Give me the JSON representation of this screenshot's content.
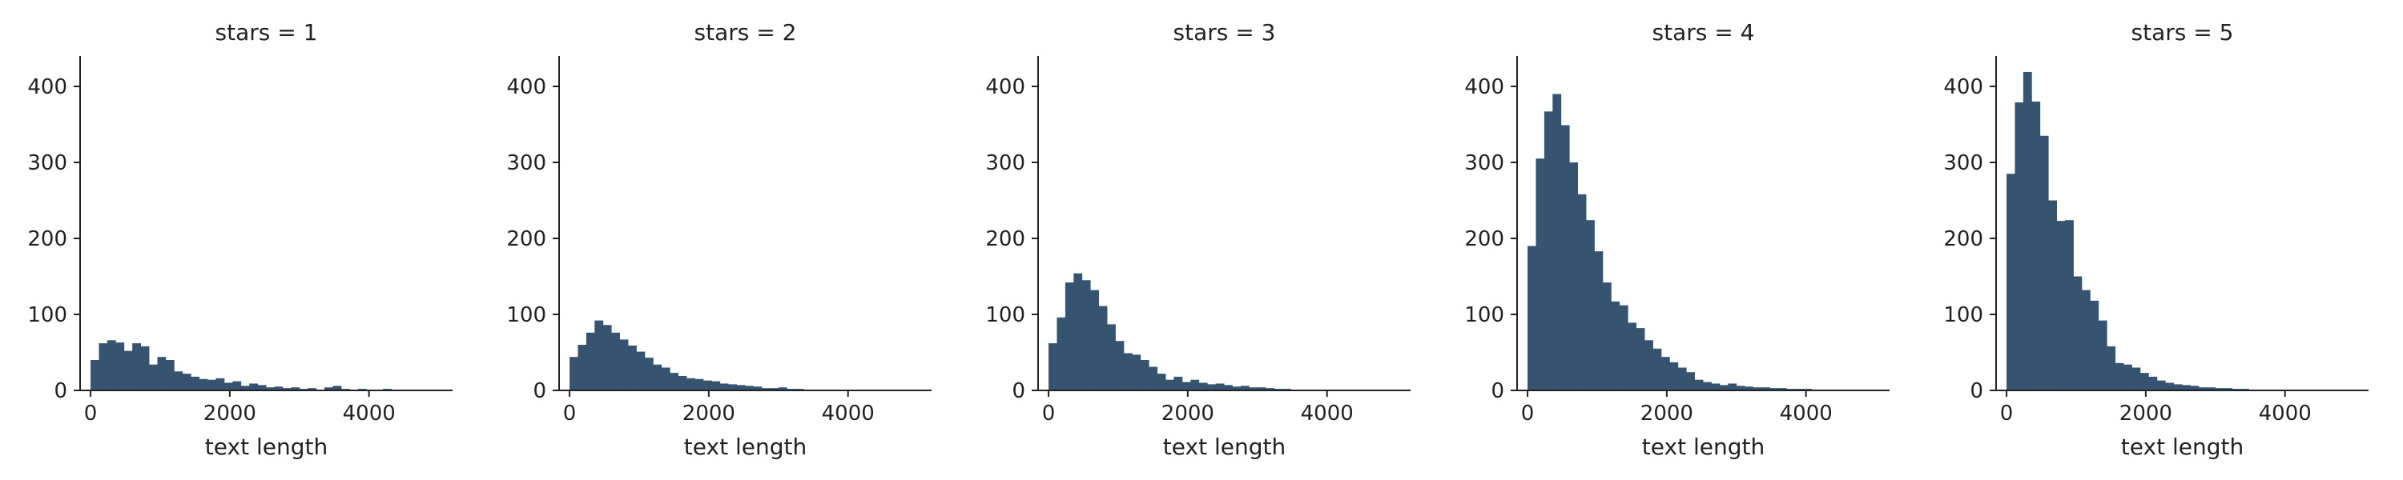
{
  "chart_data": {
    "type": "bar",
    "colors": {
      "bar": "#36536f"
    },
    "grid": false,
    "legend": "none",
    "xlim": [
      -150,
      5200
    ],
    "ylim": [
      0,
      440
    ],
    "xticks": [
      0,
      2000,
      4000
    ],
    "yticks": [
      0,
      100,
      200,
      300,
      400
    ],
    "bin_width": 120,
    "panels": [
      {
        "title": "stars = 1",
        "xlabel": "text length",
        "ylabel": "",
        "bin_start": 0,
        "values": [
          40,
          62,
          66,
          63,
          52,
          62,
          58,
          34,
          44,
          40,
          25,
          22,
          18,
          15,
          14,
          16,
          10,
          12,
          6,
          9,
          7,
          4,
          5,
          3,
          4,
          2,
          3,
          1,
          4,
          6,
          2,
          1,
          2,
          1,
          1,
          2,
          1,
          1,
          1,
          1,
          1,
          1,
          0,
          0,
          0
        ]
      },
      {
        "title": "stars = 2",
        "xlabel": "text length",
        "ylabel": "",
        "bin_start": 0,
        "values": [
          44,
          60,
          76,
          92,
          86,
          76,
          67,
          59,
          51,
          43,
          34,
          30,
          23,
          19,
          16,
          15,
          13,
          12,
          9,
          8,
          7,
          6,
          5,
          3,
          3,
          4,
          2,
          2,
          1,
          1,
          1,
          1,
          1,
          1,
          0,
          0,
          0,
          0,
          0,
          0,
          1,
          0,
          0
        ]
      },
      {
        "title": "stars = 3",
        "xlabel": "text length",
        "ylabel": "",
        "bin_start": 0,
        "values": [
          62,
          96,
          142,
          154,
          145,
          132,
          111,
          87,
          65,
          49,
          47,
          40,
          31,
          22,
          14,
          18,
          11,
          14,
          10,
          8,
          9,
          7,
          5,
          6,
          4,
          4,
          3,
          2,
          2,
          1,
          1,
          1,
          1,
          1,
          1,
          1,
          0,
          0,
          0,
          0,
          0,
          0,
          0
        ]
      },
      {
        "title": "stars = 4",
        "xlabel": "text length",
        "ylabel": "",
        "bin_start": 0,
        "values": [
          190,
          305,
          367,
          390,
          349,
          300,
          258,
          224,
          183,
          142,
          117,
          112,
          89,
          82,
          66,
          55,
          44,
          37,
          30,
          24,
          14,
          11,
          9,
          7,
          9,
          6,
          5,
          4,
          4,
          3,
          3,
          2,
          2,
          2,
          1,
          1,
          1,
          1,
          1,
          1,
          1,
          1,
          0
        ]
      },
      {
        "title": "stars = 5",
        "xlabel": "text length",
        "ylabel": "",
        "bin_start": 0,
        "values": [
          285,
          379,
          419,
          380,
          335,
          250,
          223,
          224,
          150,
          132,
          118,
          92,
          58,
          36,
          34,
          30,
          23,
          18,
          13,
          10,
          8,
          7,
          6,
          4,
          4,
          3,
          3,
          2,
          2,
          1,
          1,
          1,
          1,
          1,
          1,
          1,
          0,
          0,
          0,
          0,
          0,
          0,
          0
        ]
      }
    ]
  }
}
